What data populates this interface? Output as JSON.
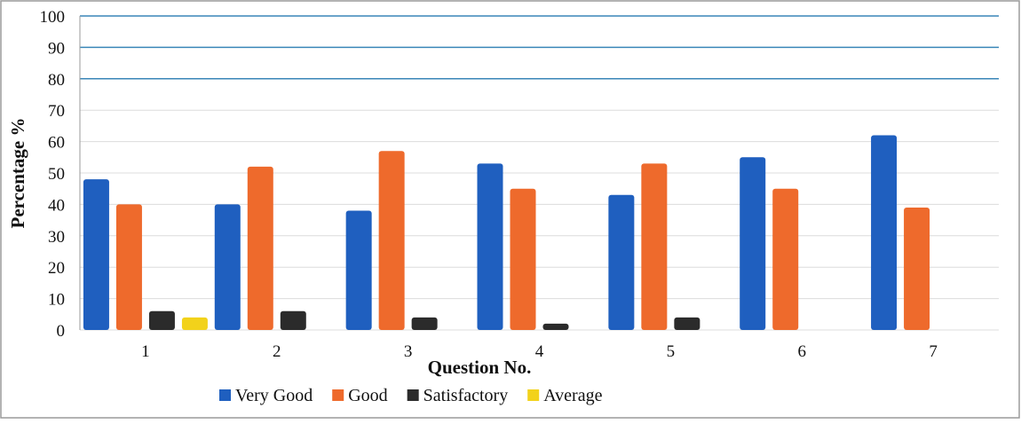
{
  "chart_data": {
    "type": "bar",
    "title": "",
    "xlabel": "Question No.",
    "ylabel": "Percentage %",
    "ylim": [
      0,
      100
    ],
    "yticks": [
      0,
      10,
      20,
      30,
      40,
      50,
      60,
      70,
      80,
      90,
      100
    ],
    "grid": true,
    "legend_position": "bottom",
    "categories": [
      "1",
      "2",
      "3",
      "4",
      "5",
      "6",
      "7"
    ],
    "series": [
      {
        "name": "Very Good",
        "color": "#1f5fbf",
        "values": [
          48,
          40,
          38,
          53,
          43,
          55,
          62
        ]
      },
      {
        "name": "Good",
        "color": "#ee6a2c",
        "values": [
          40,
          52,
          57,
          45,
          53,
          45,
          39
        ]
      },
      {
        "name": "Satisfactory",
        "color": "#2b2b2b",
        "values": [
          6,
          6,
          4,
          2,
          4,
          0,
          0
        ]
      },
      {
        "name": "Average",
        "color": "#f2d21b",
        "values": [
          4,
          0,
          0,
          0,
          0,
          0,
          0
        ]
      }
    ]
  }
}
